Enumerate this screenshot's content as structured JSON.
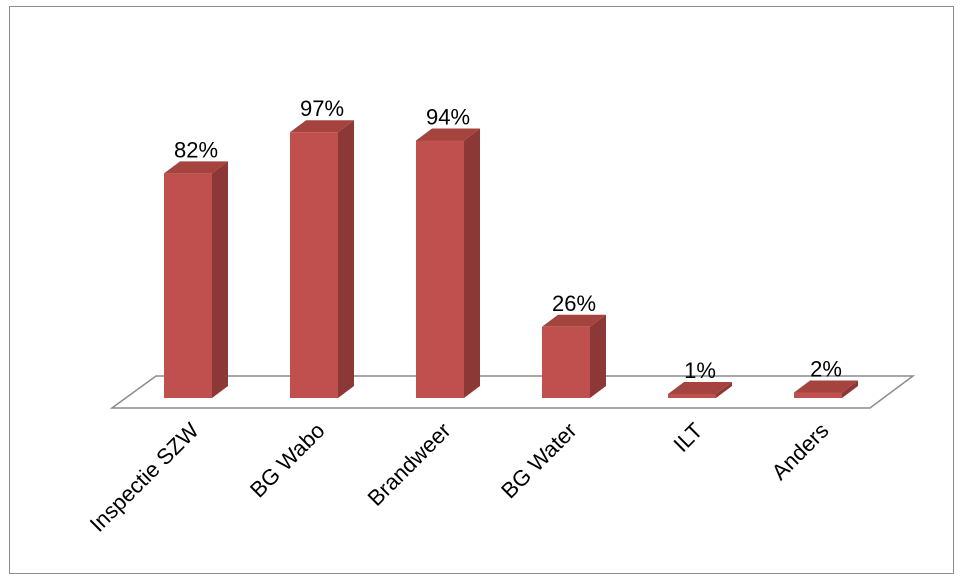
{
  "chart_data": {
    "type": "bar",
    "title": "",
    "xlabel": "",
    "ylabel": "",
    "categories": [
      "Inspectie SZW",
      "BG Wabo",
      "Brandweer",
      "BG Water",
      "ILT",
      "Anders"
    ],
    "values": [
      82,
      97,
      94,
      26,
      1,
      2
    ],
    "value_labels": [
      "82%",
      "97%",
      "94%",
      "26%",
      "1%",
      "2%"
    ],
    "ylim": [
      0,
      100
    ],
    "unit": "%",
    "style": "3d-column",
    "grid": false,
    "legend": "none",
    "colors": {
      "bar_front": "#c0504d",
      "bar_side": "#8c3836",
      "bar_top": "#a5433f",
      "floor_stroke": "#8c8c8c",
      "frame_border": "#8c8c8c"
    }
  }
}
